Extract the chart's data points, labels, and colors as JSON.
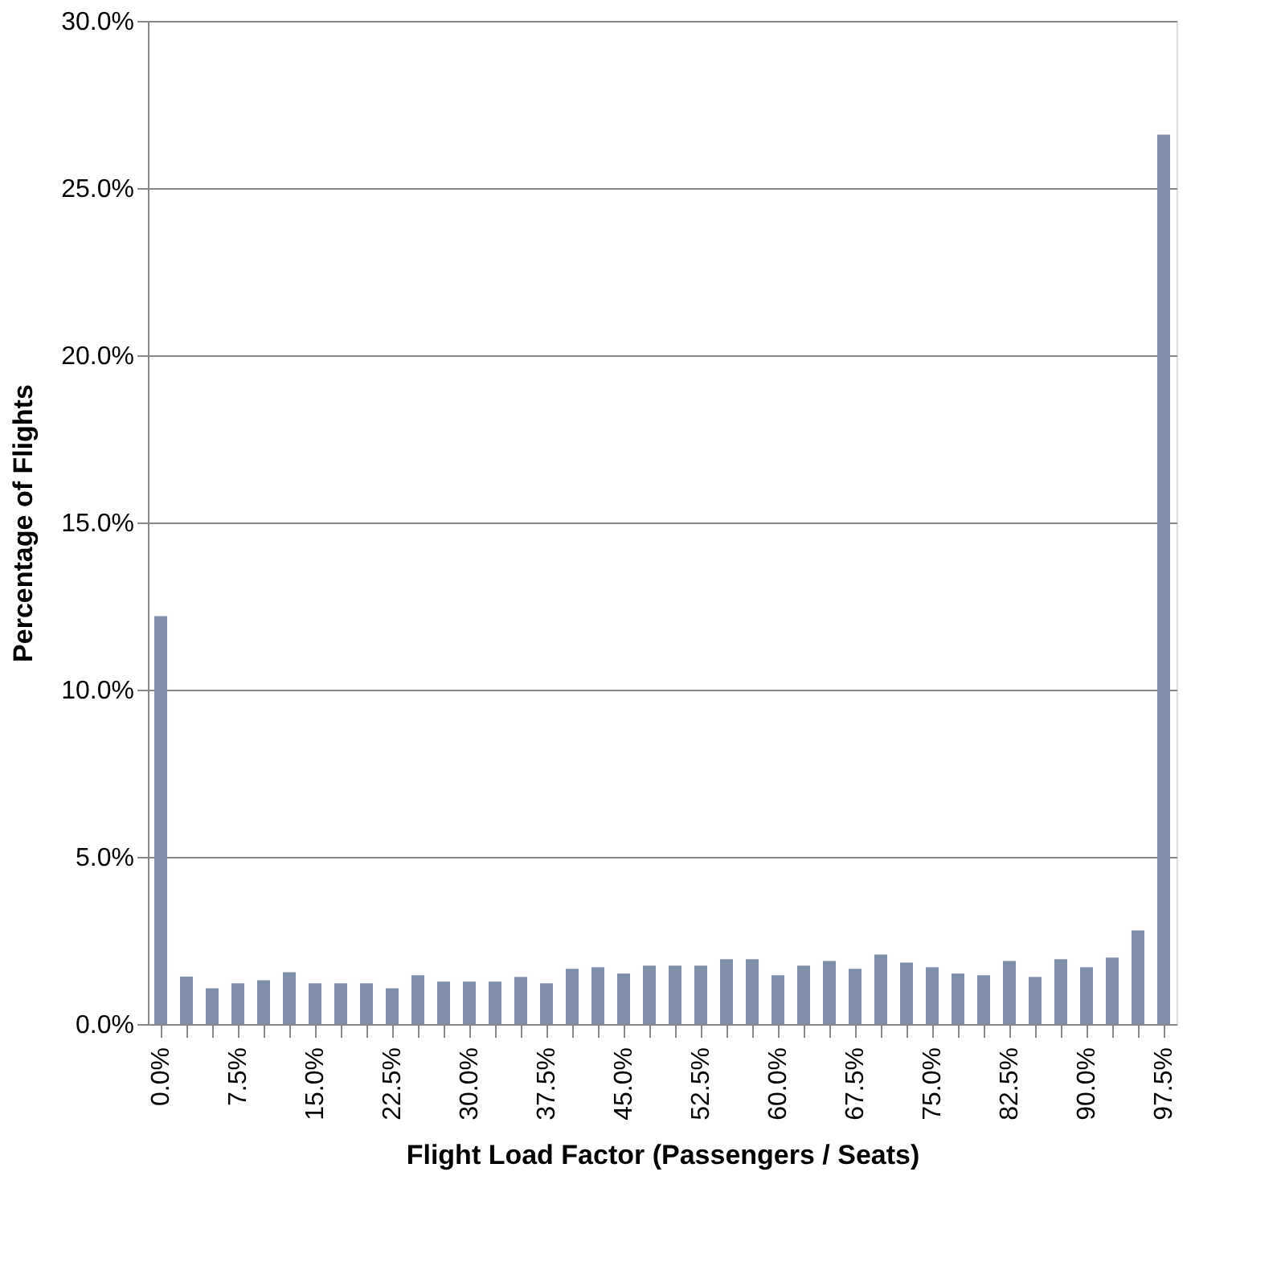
{
  "chart_data": {
    "type": "bar",
    "xlabel": "Flight Load Factor (Passengers / Seats)",
    "ylabel": "Percentage of Flights",
    "categories": [
      "0.0%",
      null,
      null,
      "7.5%",
      null,
      null,
      "15.0%",
      null,
      null,
      "22.5%",
      null,
      null,
      "30.0%",
      null,
      null,
      "37.5%",
      null,
      null,
      "45.0%",
      null,
      null,
      "52.5%",
      null,
      null,
      "60.0%",
      null,
      null,
      "67.5%",
      null,
      null,
      "75.0%",
      null,
      null,
      "82.5%",
      null,
      null,
      "90.0%",
      null,
      null,
      "97.5%"
    ],
    "values": [
      12.2,
      1.42,
      1.07,
      1.22,
      1.31,
      1.55,
      1.22,
      1.22,
      1.22,
      1.07,
      1.46,
      1.27,
      1.27,
      1.27,
      1.41,
      1.22,
      1.65,
      1.7,
      1.51,
      1.75,
      1.75,
      1.75,
      1.94,
      1.94,
      1.46,
      1.75,
      1.89,
      1.65,
      2.08,
      1.84,
      1.7,
      1.51,
      1.46,
      1.89,
      1.41,
      1.94,
      1.7,
      1.99,
      2.8,
      26.6
    ],
    "color": "#7f8fab",
    "ylim": [
      0,
      30
    ],
    "yticks": [
      {
        "value": 0,
        "label": "0.0%"
      },
      {
        "value": 5,
        "label": "5.0%"
      },
      {
        "value": 10,
        "label": "10.0%"
      },
      {
        "value": 15,
        "label": "15.0%"
      },
      {
        "value": 20,
        "label": "20.0%"
      },
      {
        "value": 25,
        "label": "25.0%"
      },
      {
        "value": 30,
        "label": "30.0%"
      }
    ],
    "grid": "y"
  }
}
